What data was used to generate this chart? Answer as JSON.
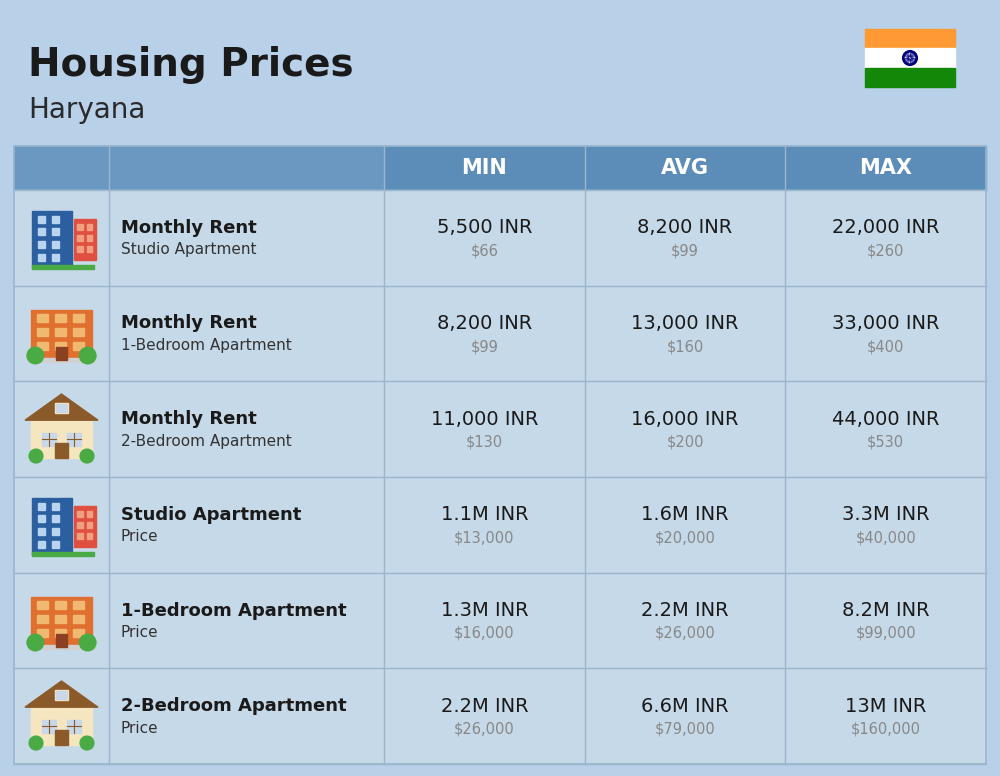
{
  "title": "Housing Prices",
  "subtitle": "Haryana",
  "bg_color": "#b8d0e8",
  "header_color": "#5b8db8",
  "header_text_color": "#ffffff",
  "row_bg_light": "#c5d9e8",
  "row_bg_dark": "#b8cfe0",
  "divider_color": "#9ab5cc",
  "col_headers": [
    "MIN",
    "AVG",
    "MAX"
  ],
  "rows": [
    {
      "icon_type": "studio_blue",
      "label_bold": "Monthly Rent",
      "label_normal": "Studio Apartment",
      "min_main": "5,500 INR",
      "min_sub": "$66",
      "avg_main": "8,200 INR",
      "avg_sub": "$99",
      "max_main": "22,000 INR",
      "max_sub": "$260"
    },
    {
      "icon_type": "one_bed_orange",
      "label_bold": "Monthly Rent",
      "label_normal": "1-Bedroom Apartment",
      "min_main": "8,200 INR",
      "min_sub": "$99",
      "avg_main": "13,000 INR",
      "avg_sub": "$160",
      "max_main": "33,000 INR",
      "max_sub": "$400"
    },
    {
      "icon_type": "two_bed_beige",
      "label_bold": "Monthly Rent",
      "label_normal": "2-Bedroom Apartment",
      "min_main": "11,000 INR",
      "min_sub": "$130",
      "avg_main": "16,000 INR",
      "avg_sub": "$200",
      "max_main": "44,000 INR",
      "max_sub": "$530"
    },
    {
      "icon_type": "studio_blue",
      "label_bold": "Studio Apartment",
      "label_normal": "Price",
      "min_main": "1.1M INR",
      "min_sub": "$13,000",
      "avg_main": "1.6M INR",
      "avg_sub": "$20,000",
      "max_main": "3.3M INR",
      "max_sub": "$40,000"
    },
    {
      "icon_type": "one_bed_orange",
      "label_bold": "1-Bedroom Apartment",
      "label_normal": "Price",
      "min_main": "1.3M INR",
      "min_sub": "$16,000",
      "avg_main": "2.2M INR",
      "avg_sub": "$26,000",
      "max_main": "8.2M INR",
      "max_sub": "$99,000"
    },
    {
      "icon_type": "two_bed_beige",
      "label_bold": "2-Bedroom Apartment",
      "label_normal": "Price",
      "min_main": "2.2M INR",
      "min_sub": "$26,000",
      "avg_main": "6.6M INR",
      "avg_sub": "$79,000",
      "max_main": "13M INR",
      "max_sub": "$160,000"
    }
  ]
}
